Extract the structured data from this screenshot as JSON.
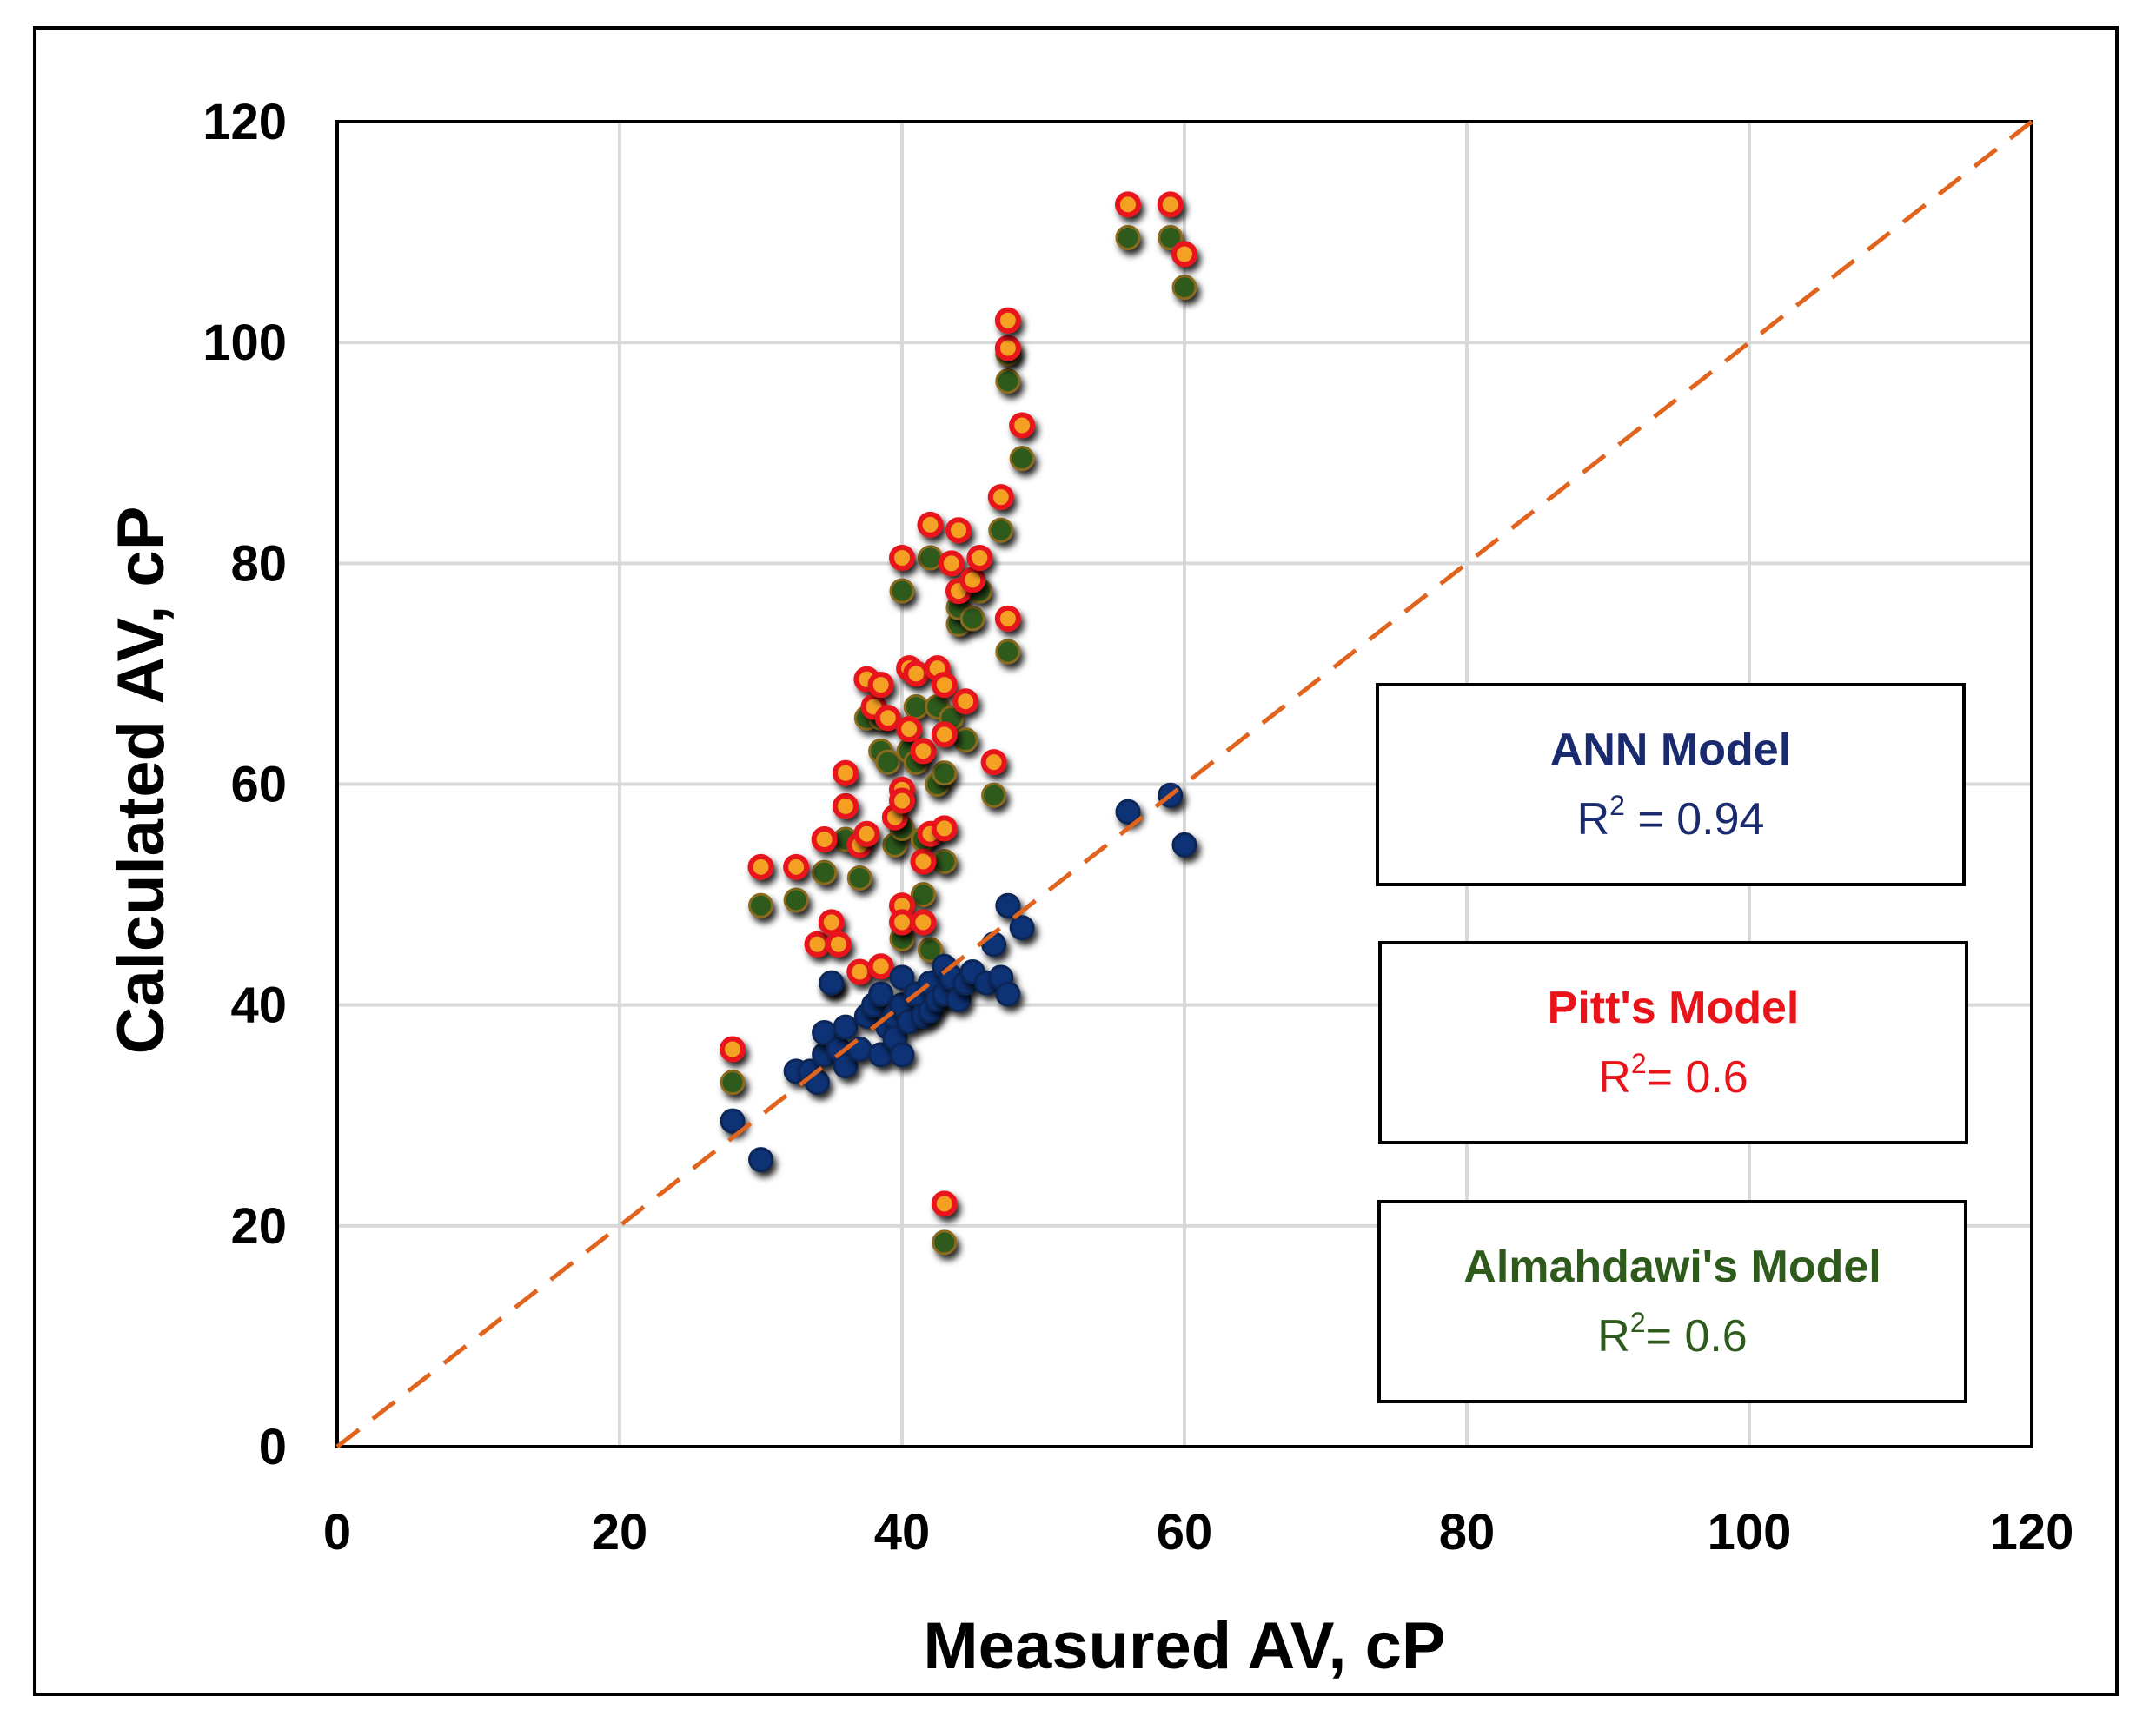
{
  "chart_data": {
    "type": "scatter",
    "xlabel": "Measured AV, cP",
    "ylabel": "Calculated AV, cP",
    "xlim": [
      0,
      120
    ],
    "ylim": [
      0,
      120
    ],
    "xticks": [
      "0",
      "20",
      "40",
      "60",
      "80",
      "100",
      "120"
    ],
    "yticks": [
      "0",
      "20",
      "40",
      "60",
      "80",
      "100",
      "120"
    ],
    "grid": true,
    "reference_line": {
      "name": "1:1 line",
      "style": "dashed",
      "color": "#e0641e",
      "from": [
        0,
        0
      ],
      "to": [
        120,
        120
      ]
    },
    "annotations": [
      {
        "title": "ANN Model",
        "r2_prefix": "R",
        "r2_sup": "2",
        "r2_suffix": " = 0.94",
        "color": "#1a2a6e"
      },
      {
        "title": "Pitt's Model",
        "r2_prefix": "R",
        "r2_sup": "2",
        "r2_suffix": "= 0.6",
        "color": "#e8141a"
      },
      {
        "title": "Almahdawi's Model",
        "r2_prefix": "R",
        "r2_sup": "2",
        "r2_suffix": "= 0.6",
        "color": "#2e5a1c"
      }
    ],
    "series": [
      {
        "name": "Almahdawi's Model",
        "color": "#2e5a1c",
        "points": [
          [
            28,
            33
          ],
          [
            30,
            49
          ],
          [
            32.5,
            49.5
          ],
          [
            34.5,
            52
          ],
          [
            35,
            42
          ],
          [
            36,
            55
          ],
          [
            37,
            51.5
          ],
          [
            37.5,
            66
          ],
          [
            38.5,
            66
          ],
          [
            38.5,
            63
          ],
          [
            39,
            62
          ],
          [
            39.5,
            54.5
          ],
          [
            40,
            56
          ],
          [
            40,
            77.5
          ],
          [
            40,
            46
          ],
          [
            40.5,
            63
          ],
          [
            41,
            62
          ],
          [
            41,
            67
          ],
          [
            41.5,
            55
          ],
          [
            41.5,
            50
          ],
          [
            42,
            45
          ],
          [
            42,
            80.5
          ],
          [
            42.5,
            67
          ],
          [
            42.5,
            60
          ],
          [
            43,
            61
          ],
          [
            43,
            53
          ],
          [
            43,
            18.5
          ],
          [
            43.5,
            66
          ],
          [
            44,
            74.5
          ],
          [
            44,
            76
          ],
          [
            44.5,
            64
          ],
          [
            45,
            75
          ],
          [
            45.5,
            77.5
          ],
          [
            46.5,
            59
          ],
          [
            47,
            83
          ],
          [
            47.5,
            72
          ],
          [
            47.5,
            96.5
          ],
          [
            47.5,
            99
          ],
          [
            48.5,
            89.5
          ],
          [
            56,
            109.5
          ],
          [
            59,
            109.5
          ],
          [
            60,
            105
          ]
        ]
      },
      {
        "name": "Pitt's Model",
        "color": "#e8141a",
        "points": [
          [
            28,
            36
          ],
          [
            30,
            52.5
          ],
          [
            32.5,
            52.5
          ],
          [
            34,
            45.5
          ],
          [
            34.5,
            55
          ],
          [
            35,
            47.5
          ],
          [
            35.5,
            45.5
          ],
          [
            36,
            58
          ],
          [
            36,
            61
          ],
          [
            37,
            43
          ],
          [
            37,
            54.5
          ],
          [
            37.5,
            55.5
          ],
          [
            37.5,
            69.5
          ],
          [
            38,
            67
          ],
          [
            38.5,
            69
          ],
          [
            38.5,
            43.5
          ],
          [
            39,
            66
          ],
          [
            39.5,
            57
          ],
          [
            40,
            80.5
          ],
          [
            40,
            59.5
          ],
          [
            40,
            49
          ],
          [
            40,
            47.5
          ],
          [
            40,
            58.5
          ],
          [
            40.5,
            70.5
          ],
          [
            40.5,
            65
          ],
          [
            41,
            70
          ],
          [
            41.5,
            63
          ],
          [
            41.5,
            47.5
          ],
          [
            41.5,
            53
          ],
          [
            42,
            83.5
          ],
          [
            42,
            55.5
          ],
          [
            42.5,
            70.5
          ],
          [
            43,
            69
          ],
          [
            43,
            64.5
          ],
          [
            43,
            56
          ],
          [
            43,
            22
          ],
          [
            43.5,
            80
          ],
          [
            44,
            83
          ],
          [
            44,
            77.5
          ],
          [
            44.5,
            67.5
          ],
          [
            45,
            78.5
          ],
          [
            45.5,
            80.5
          ],
          [
            46.5,
            62
          ],
          [
            47,
            86
          ],
          [
            47.5,
            75
          ],
          [
            47.5,
            99.5
          ],
          [
            47.5,
            102
          ],
          [
            48.5,
            92.5
          ],
          [
            56,
            112.5
          ],
          [
            59,
            112.5
          ],
          [
            60,
            108
          ]
        ]
      },
      {
        "name": "ANN Model",
        "color": "#0d3374",
        "points": [
          [
            28,
            29.5
          ],
          [
            30,
            26
          ],
          [
            32.5,
            34
          ],
          [
            33.5,
            34
          ],
          [
            34,
            33
          ],
          [
            34.5,
            35.5
          ],
          [
            34.5,
            37.5
          ],
          [
            35,
            42
          ],
          [
            35.5,
            36
          ],
          [
            36,
            34.5
          ],
          [
            36,
            38
          ],
          [
            37,
            36
          ],
          [
            37.5,
            39
          ],
          [
            38,
            40
          ],
          [
            38.5,
            35.5
          ],
          [
            38.5,
            41
          ],
          [
            39,
            38
          ],
          [
            39.5,
            39
          ],
          [
            39.5,
            37
          ],
          [
            40,
            40
          ],
          [
            40,
            42.5
          ],
          [
            40,
            35.5
          ],
          [
            40.5,
            38.5
          ],
          [
            41,
            41
          ],
          [
            41.5,
            39
          ],
          [
            42,
            42
          ],
          [
            42,
            39.5
          ],
          [
            42.5,
            40.5
          ],
          [
            43,
            43.5
          ],
          [
            43,
            41
          ],
          [
            43.5,
            42.5
          ],
          [
            44,
            40.5
          ],
          [
            44.5,
            42
          ],
          [
            45,
            43
          ],
          [
            46,
            42
          ],
          [
            46.5,
            45.5
          ],
          [
            47,
            42.5
          ],
          [
            47.5,
            49
          ],
          [
            47.5,
            41
          ],
          [
            48.5,
            47
          ],
          [
            56,
            57.5
          ],
          [
            59,
            59
          ],
          [
            60,
            54.5
          ]
        ]
      }
    ]
  }
}
